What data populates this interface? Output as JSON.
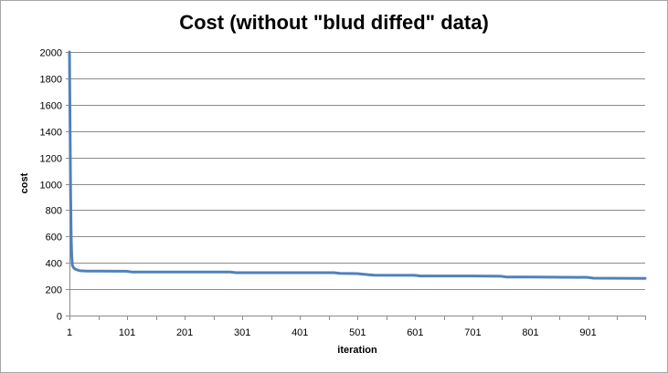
{
  "chart_data": {
    "type": "line",
    "title": "Cost (without \"blud diffed\" data)",
    "xlabel": "iteration",
    "ylabel": "cost",
    "ylim": [
      0,
      2000
    ],
    "xlim": [
      1,
      1000
    ],
    "yticks": [
      0,
      200,
      400,
      600,
      800,
      1000,
      1200,
      1400,
      1600,
      1800,
      2000
    ],
    "xticks": [
      1,
      101,
      201,
      301,
      401,
      501,
      601,
      701,
      801,
      901
    ],
    "grid": "horizontal",
    "legend": "none",
    "series": [
      {
        "color": "#4f81bd",
        "x": [
          1,
          2,
          3,
          4,
          5,
          6,
          8,
          10,
          15,
          20,
          30,
          50,
          100,
          110,
          200,
          280,
          290,
          400,
          460,
          470,
          500,
          520,
          530,
          600,
          610,
          700,
          750,
          760,
          800,
          900,
          910,
          1000
        ],
        "y": [
          2000,
          1500,
          900,
          600,
          450,
          380,
          365,
          355,
          345,
          340,
          338,
          337,
          336,
          330,
          330,
          330,
          325,
          325,
          325,
          320,
          318,
          310,
          306,
          305,
          300,
          300,
          298,
          292,
          292,
          290,
          284,
          282
        ]
      }
    ]
  }
}
